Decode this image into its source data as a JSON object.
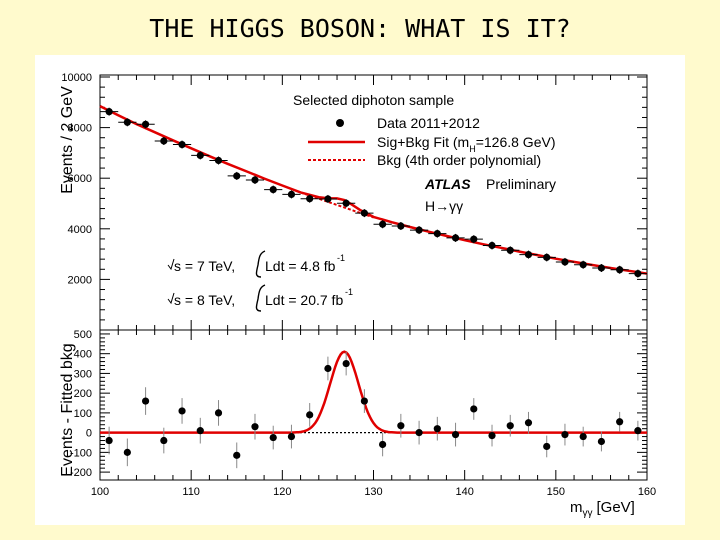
{
  "slide": {
    "title": "THE HIGGS BOSON: WHAT IS IT?"
  },
  "chart_data": [
    {
      "type": "scatter",
      "panel": "top",
      "ylabel": "Events / 2 GeV",
      "xlim": [
        100,
        160
      ],
      "ylim": [
        0,
        10000
      ],
      "yticks": [
        "2000",
        "4000",
        "6000",
        "8000",
        "10000"
      ],
      "x": [
        101,
        103,
        105,
        107,
        109,
        111,
        113,
        115,
        117,
        119,
        121,
        123,
        125,
        127,
        129,
        131,
        133,
        135,
        137,
        139,
        141,
        143,
        145,
        147,
        149,
        151,
        153,
        155,
        157,
        159
      ],
      "y": [
        8630,
        8210,
        8130,
        7470,
        7330,
        6900,
        6700,
        6090,
        5930,
        5550,
        5360,
        5190,
        5180,
        5010,
        4620,
        4180,
        4110,
        3950,
        3810,
        3640,
        3590,
        3340,
        3150,
        2980,
        2870,
        2690,
        2580,
        2450,
        2380,
        2230
      ],
      "fit_sig_bkg": {
        "x": [
          100,
          102,
          104,
          106,
          108,
          110,
          112,
          114,
          116,
          118,
          120,
          122,
          124,
          125,
          126,
          126.8,
          127.5,
          128.5,
          130,
          132,
          134,
          136,
          138,
          140,
          142,
          144,
          146,
          148,
          150,
          152,
          154,
          156,
          158,
          160
        ],
        "y": [
          8850,
          8490,
          8140,
          7820,
          7500,
          7180,
          6870,
          6570,
          6280,
          5990,
          5710,
          5440,
          5250,
          5210,
          5200,
          5140,
          4990,
          4750,
          4470,
          4260,
          4070,
          3890,
          3720,
          3550,
          3390,
          3250,
          3100,
          2960,
          2820,
          2690,
          2570,
          2450,
          2340,
          2230
        ]
      },
      "fit_bkg": {
        "x": [
          122,
          124,
          126,
          128,
          130
        ],
        "y": [
          5440,
          5190,
          4940,
          4690,
          4450
        ]
      },
      "legend": {
        "title": "Selected diphoton sample",
        "items": [
          "Data 2011+2012",
          "Sig+Bkg Fit (m",
          "H",
          "=126.8 GeV)",
          "Bkg (4th order polynomial)"
        ]
      },
      "experiment": "ATLAS",
      "status": "Preliminary",
      "channel": "H→γγ",
      "annotations": {
        "line1_energy": "s = 7 TeV,",
        "line1_lumi": "Ldt = 4.8 fb",
        "line1_exp": "-1",
        "line2_energy": "s = 8 TeV,",
        "line2_lumi": "Ldt = 20.7 fb",
        "line2_exp": "-1"
      }
    },
    {
      "type": "scatter",
      "panel": "bottom",
      "ylabel": "Events - Fitted bkg",
      "xlabel": "m",
      "xlabel_sub": "γγ",
      "xlabel_unit": "[GeV]",
      "xlim": [
        100,
        160
      ],
      "ylim": [
        -240,
        520
      ],
      "xticks": [
        "100",
        "110",
        "120",
        "130",
        "140",
        "150",
        "160"
      ],
      "yticks": [
        "-200",
        "-100",
        "0",
        "100",
        "200",
        "300",
        "400",
        "500"
      ],
      "x": [
        101,
        103,
        105,
        107,
        109,
        111,
        113,
        115,
        117,
        119,
        121,
        123,
        125,
        127,
        129,
        131,
        133,
        135,
        137,
        139,
        141,
        143,
        145,
        147,
        149,
        151,
        153,
        155,
        157,
        159
      ],
      "y": [
        -40,
        -100,
        160,
        -40,
        110,
        10,
        100,
        -115,
        30,
        -25,
        -20,
        90,
        325,
        350,
        160,
        -60,
        35,
        0,
        20,
        -10,
        120,
        -15,
        35,
        50,
        -70,
        -10,
        -20,
        -45,
        55,
        10
      ],
      "yerr": [
        70,
        70,
        70,
        65,
        65,
        65,
        65,
        65,
        65,
        60,
        60,
        60,
        60,
        60,
        60,
        60,
        60,
        60,
        60,
        60,
        55,
        55,
        55,
        55,
        55,
        55,
        50,
        50,
        50,
        50
      ],
      "signal_fit": {
        "mean": 126.8,
        "amplitude": 410,
        "sigma": 1.55
      }
    }
  ]
}
